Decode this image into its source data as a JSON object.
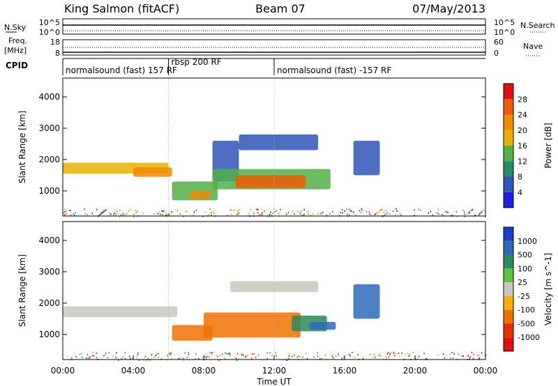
{
  "header": {
    "station": "King Salmon (fitACF)",
    "beam": "Beam 07",
    "date": "07/May/2013"
  },
  "strips": {
    "nsky_label": "N.Sky",
    "nsky_ticks": [
      "10^5",
      "10^0"
    ],
    "nsearch_label": "N.Search",
    "nsearch_ticks": [
      "10^5",
      "10^0"
    ],
    "freq_label": "Freq.",
    "freq_unit": "[MHz]",
    "freq_ticks": [
      "18",
      "8"
    ],
    "nave_label": "Nave",
    "nave_ticks": [
      "60",
      "0"
    ],
    "cpid_label": "CPID",
    "cpid_segments": [
      {
        "label": "normalsound (fast) 157 RF",
        "start": 0,
        "end": 6.0
      },
      {
        "label": "rbsp 200 RF",
        "start": 6.0,
        "end": 12.0
      },
      {
        "label": "normalsound (fast) -157 RF",
        "start": 12.0,
        "end": 24.0
      }
    ]
  },
  "x_axis": {
    "label": "Time UT",
    "ticks": [
      "00:00",
      "04:00",
      "08:00",
      "12:00",
      "16:00",
      "20:00",
      "00:00"
    ]
  },
  "chart_data": [
    {
      "type": "heatmap",
      "panel": "power",
      "ylabel": "Slant Range [km]",
      "xlabel": "Time UT",
      "xlim": [
        0,
        24
      ],
      "ylim": [
        200,
        4600
      ],
      "yticks": [
        1000,
        2000,
        3000,
        4000
      ],
      "colorbar": {
        "label": "Power [dB]",
        "ticks": [
          "4",
          "8",
          "12",
          "16",
          "20",
          "24",
          "28"
        ],
        "colors": [
          "#1d1ee0",
          "#2e55b8",
          "#2b8a6a",
          "#54b04a",
          "#e8b000",
          "#f08a00",
          "#f05a00",
          "#e01010"
        ]
      },
      "regions": [
        {
          "t0": 0.0,
          "t1": 6.0,
          "r0": 1550,
          "r1": 1900,
          "value": 16
        },
        {
          "t0": 4.0,
          "t1": 6.2,
          "r0": 1450,
          "r1": 1750,
          "value": 22
        },
        {
          "t0": 6.2,
          "t1": 8.8,
          "r0": 700,
          "r1": 1300,
          "value": 12
        },
        {
          "t0": 7.2,
          "t1": 8.4,
          "r0": 750,
          "r1": 1000,
          "value": 20
        },
        {
          "t0": 8.5,
          "t1": 10.0,
          "r0": 1300,
          "r1": 2600,
          "value": 6
        },
        {
          "t0": 8.5,
          "t1": 15.2,
          "r0": 1050,
          "r1": 1700,
          "value": 12
        },
        {
          "t0": 9.8,
          "t1": 13.8,
          "r0": 1100,
          "r1": 1500,
          "value": 26
        },
        {
          "t0": 10.0,
          "t1": 14.5,
          "r0": 2300,
          "r1": 2800,
          "value": 6
        },
        {
          "t0": 16.5,
          "t1": 18.0,
          "r0": 1500,
          "r1": 2600,
          "value": 6
        }
      ]
    },
    {
      "type": "heatmap",
      "panel": "velocity",
      "ylabel": "Slant Range [km]",
      "xlabel": "Time UT",
      "xlim": [
        0,
        24
      ],
      "ylim": [
        200,
        4600
      ],
      "yticks": [
        1000,
        2000,
        3000,
        4000
      ],
      "colorbar": {
        "label": "Velocity [m s^-1]",
        "ticks": [
          "1000",
          "500",
          "100",
          "25",
          "-25",
          "-100",
          "-500",
          "-1000"
        ],
        "colors": [
          "#1a3ec8",
          "#2e6ab8",
          "#2a8a5a",
          "#5cc040",
          "#c8c8c0",
          "#f5b000",
          "#f07000",
          "#e83000",
          "#e01010"
        ]
      },
      "regions": [
        {
          "t0": 0.0,
          "t1": 6.5,
          "r0": 1550,
          "r1": 1900,
          "value": 0
        },
        {
          "t0": 6.2,
          "t1": 8.5,
          "r0": 800,
          "r1": 1300,
          "value": -300
        },
        {
          "t0": 8.0,
          "t1": 13.5,
          "r0": 900,
          "r1": 1700,
          "value": -300
        },
        {
          "t0": 13.0,
          "t1": 15.0,
          "r0": 1100,
          "r1": 1600,
          "value": 150
        },
        {
          "t0": 9.5,
          "t1": 14.5,
          "r0": 2350,
          "r1": 2700,
          "value": 0
        },
        {
          "t0": 14.0,
          "t1": 15.5,
          "r0": 1150,
          "r1": 1400,
          "value": 600
        },
        {
          "t0": 16.5,
          "t1": 18.0,
          "r0": 1500,
          "r1": 2600,
          "value": 600
        }
      ]
    }
  ]
}
